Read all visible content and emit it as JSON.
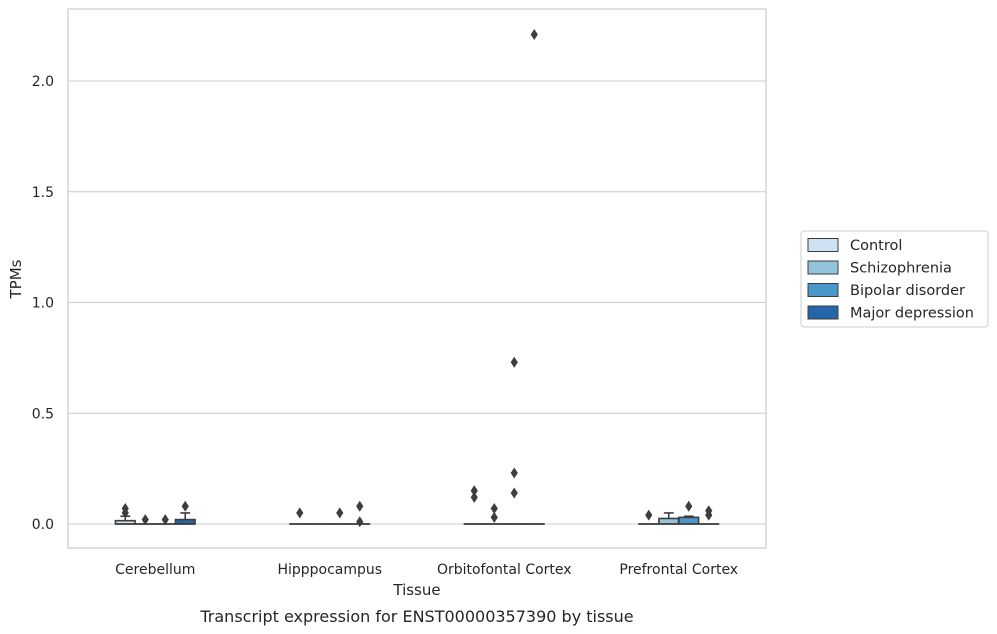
{
  "chart_data": {
    "type": "box",
    "title": "",
    "caption": "Transcript expression for ENST00000357390 by tissue",
    "xlabel": "Tissue",
    "ylabel": "TPMs",
    "ylim": [
      -0.11,
      2.33
    ],
    "yticks": [
      0.0,
      0.5,
      1.0,
      1.5,
      2.0
    ],
    "ytick_labels": [
      "0.0",
      "0.5",
      "1.0",
      "1.5",
      "2.0"
    ],
    "grid": "horizontal",
    "legend_position": "right",
    "categories": [
      "Cerebellum",
      "Hipppocampus",
      "Orbitofontal Cortex",
      "Prefrontal Cortex"
    ],
    "series": [
      {
        "name": "Control",
        "color": "#cfe1f2",
        "boxes": [
          {
            "q1": 0.0,
            "median": 0.0,
            "q3": 0.015,
            "whisker_low": 0.0,
            "whisker_high": 0.035,
            "outliers": [
              0.07,
              0.05
            ]
          },
          {
            "q1": 0.0,
            "median": 0.0,
            "q3": 0.0,
            "whisker_low": 0.0,
            "whisker_high": 0.0,
            "outliers": [
              0.05
            ]
          },
          {
            "q1": 0.0,
            "median": 0.0,
            "q3": 0.0,
            "whisker_low": 0.0,
            "whisker_high": 0.0,
            "outliers": [
              0.15,
              0.12
            ]
          },
          {
            "q1": 0.0,
            "median": 0.0,
            "q3": 0.0,
            "whisker_low": 0.0,
            "whisker_high": 0.0,
            "outliers": [
              0.04
            ]
          }
        ]
      },
      {
        "name": "Schizophrenia",
        "color": "#93c4de",
        "boxes": [
          {
            "q1": 0.0,
            "median": 0.0,
            "q3": 0.0,
            "whisker_low": 0.0,
            "whisker_high": 0.0,
            "outliers": [
              0.02
            ]
          },
          {
            "q1": 0.0,
            "median": 0.0,
            "q3": 0.0,
            "whisker_low": 0.0,
            "whisker_high": 0.0,
            "outliers": []
          },
          {
            "q1": 0.0,
            "median": 0.0,
            "q3": 0.0,
            "whisker_low": 0.0,
            "whisker_high": 0.0,
            "outliers": [
              0.07,
              0.03
            ]
          },
          {
            "q1": 0.0,
            "median": 0.0,
            "q3": 0.025,
            "whisker_low": 0.0,
            "whisker_high": 0.05,
            "outliers": []
          }
        ]
      },
      {
        "name": "Bipolar disorder",
        "color": "#4a98c9",
        "boxes": [
          {
            "q1": 0.0,
            "median": 0.0,
            "q3": 0.0,
            "whisker_low": 0.0,
            "whisker_high": 0.0,
            "outliers": [
              0.02
            ]
          },
          {
            "q1": 0.0,
            "median": 0.0,
            "q3": 0.0,
            "whisker_low": 0.0,
            "whisker_high": 0.0,
            "outliers": [
              0.05
            ]
          },
          {
            "q1": 0.0,
            "median": 0.0,
            "q3": 0.0,
            "whisker_low": 0.0,
            "whisker_high": 0.0,
            "outliers": [
              0.73,
              0.23,
              0.14
            ]
          },
          {
            "q1": 0.0,
            "median": 0.0,
            "q3": 0.03,
            "whisker_low": 0.0,
            "whisker_high": 0.035,
            "outliers": [
              0.08
            ]
          }
        ]
      },
      {
        "name": "Major depression",
        "color": "#2466a8",
        "boxes": [
          {
            "q1": 0.0,
            "median": 0.0,
            "q3": 0.02,
            "whisker_low": 0.0,
            "whisker_high": 0.05,
            "outliers": [
              0.08
            ]
          },
          {
            "q1": 0.0,
            "median": 0.0,
            "q3": 0.0,
            "whisker_low": 0.0,
            "whisker_high": 0.0,
            "outliers": [
              0.08,
              0.01
            ]
          },
          {
            "q1": 0.0,
            "median": 0.0,
            "q3": 0.0,
            "whisker_low": 0.0,
            "whisker_high": 0.0,
            "outliers": [
              2.21
            ]
          },
          {
            "q1": 0.0,
            "median": 0.0,
            "q3": 0.0,
            "whisker_low": 0.0,
            "whisker_high": 0.0,
            "outliers": [
              0.06,
              0.04
            ]
          }
        ]
      }
    ]
  }
}
